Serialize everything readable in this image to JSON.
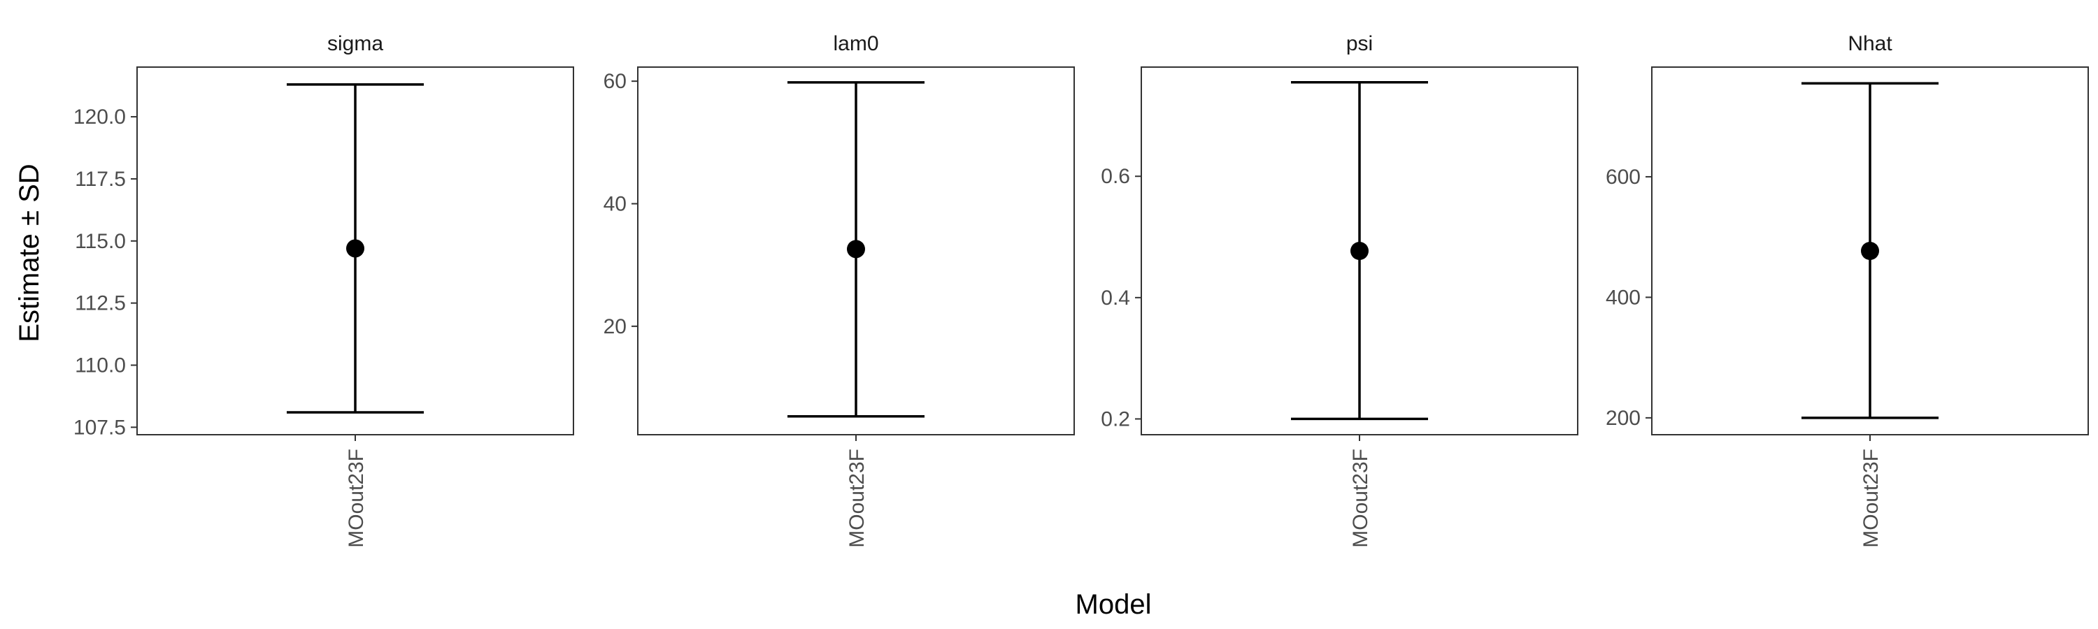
{
  "chart_data": {
    "type": "errorbar",
    "xlabel": "Model",
    "ylabel": "Estimate ± SD",
    "category": "MOout23F",
    "panels": [
      {
        "title": "sigma",
        "ylim": [
          107.2,
          122.0
        ],
        "ticks": [
          107.5,
          110.0,
          112.5,
          115.0,
          117.5,
          120.0
        ],
        "tick_labels": [
          "107.5",
          "110.0",
          "112.5",
          "115.0",
          "117.5",
          "120.0"
        ],
        "estimate": 114.7,
        "lower": 108.1,
        "upper": 121.3
      },
      {
        "title": "lam0",
        "ylim": [
          2.3,
          62.3
        ],
        "ticks": [
          20,
          40,
          60
        ],
        "tick_labels": [
          "20",
          "40",
          "60"
        ],
        "estimate": 32.6,
        "lower": 5.3,
        "upper": 59.8
      },
      {
        "title": "psi",
        "ylim": [
          0.174,
          0.78
        ],
        "ticks": [
          0.2,
          0.4,
          0.6
        ],
        "tick_labels": [
          "0.2",
          "0.4",
          "0.6"
        ],
        "estimate": 0.477,
        "lower": 0.2,
        "upper": 0.755
      },
      {
        "title": "Nhat",
        "ylim": [
          172,
          782
        ],
        "ticks": [
          200,
          400,
          600
        ],
        "tick_labels": [
          "200",
          "400",
          "600"
        ],
        "estimate": 477,
        "lower": 200,
        "upper": 755
      }
    ]
  }
}
